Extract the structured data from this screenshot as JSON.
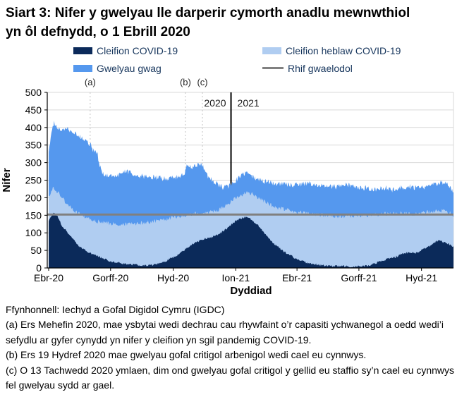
{
  "page": {
    "title": "Siart 3: Nifer y gwelyau lle darperir cymorth anadlu mewnwthiol yn ôl defnydd, o 1 Ebrill 2020",
    "footnotes": [
      "Ffynhonnell: Iechyd a Gofal Digidol Cymru (IGDC)",
      "(a) Ers Mehefin 2020, mae ysbytai wedi dechrau cau rhywfaint o’r capasiti ychwanegol a oedd wedi’i sefydlu ar gyfer cynydd yn nifer y cleifion yn sgil pandemig COVID-19.",
      "(b) Ers 19 Hydref 2020 mae gwelyau gofal critigol arbenigol wedi cael eu cynnwys.",
      "(c) O 13 Tachwedd 2020 ymlaen, dim ond gwelyau gofal critigol y gellid eu staffio sy’n cael eu cynnwys fel gwelyau sydd ar gael."
    ]
  },
  "legend": {
    "items": [
      {
        "label": "Cleifion COVID-19",
        "swatch": "rect",
        "color": "#0b2a5a"
      },
      {
        "label": "Cleifion heblaw COVID-19",
        "swatch": "rect",
        "color": "#b0cdf1"
      },
      {
        "label": "Gwelyau gwag",
        "swatch": "rect",
        "color": "#5598ee"
      },
      {
        "label": "Rhif gwaelodol",
        "swatch": "line",
        "color": "#808080"
      }
    ]
  },
  "chart_data": {
    "type": "area",
    "stacked": true,
    "x_unit": "days since 2020-04-01",
    "x_range_days": [
      0,
      595
    ],
    "ylim": [
      0,
      500
    ],
    "ytick_step": 50,
    "xlabel": "Dyddiad",
    "ylabel": "Nifer",
    "grid": true,
    "x_ticks": [
      {
        "day": 0,
        "label": "Ebr-20"
      },
      {
        "day": 91,
        "label": "Gorff-20"
      },
      {
        "day": 183,
        "label": "Hyd-20"
      },
      {
        "day": 275,
        "label": "Ion-21"
      },
      {
        "day": 365,
        "label": "Ebr-21"
      },
      {
        "day": 456,
        "label": "Gorff-21"
      },
      {
        "day": 548,
        "label": "Hyd-21"
      }
    ],
    "baseline": {
      "label": "Rhif gwaelodol",
      "value": 152,
      "color": "#808080"
    },
    "year_divider": {
      "day": 268,
      "left_label": "2020",
      "right_label": "2021"
    },
    "annotations": [
      {
        "label": "(a)",
        "day": 61
      },
      {
        "label": "(b)",
        "day": 201
      },
      {
        "label": "(c)",
        "day": 226
      }
    ],
    "jitter": [
      3,
      6,
      8
    ],
    "series": [
      {
        "id": "covid_patients",
        "legend_label": "Cleifion COVID-19",
        "color": "#0b2a5a",
        "meaning": "cumulative top: patients with COVID-19",
        "points": [
          [
            0,
            132
          ],
          [
            7,
            157
          ],
          [
            12,
            150
          ],
          [
            20,
            118
          ],
          [
            30,
            96
          ],
          [
            45,
            62
          ],
          [
            60,
            43
          ],
          [
            75,
            30
          ],
          [
            90,
            20
          ],
          [
            105,
            14
          ],
          [
            120,
            10
          ],
          [
            140,
            7
          ],
          [
            155,
            9
          ],
          [
            170,
            18
          ],
          [
            185,
            32
          ],
          [
            200,
            52
          ],
          [
            215,
            72
          ],
          [
            228,
            83
          ],
          [
            240,
            88
          ],
          [
            252,
            98
          ],
          [
            262,
            112
          ],
          [
            270,
            126
          ],
          [
            280,
            140
          ],
          [
            290,
            145
          ],
          [
            298,
            138
          ],
          [
            308,
            122
          ],
          [
            320,
            92
          ],
          [
            332,
            68
          ],
          [
            345,
            48
          ],
          [
            360,
            30
          ],
          [
            375,
            18
          ],
          [
            390,
            11
          ],
          [
            405,
            7
          ],
          [
            425,
            5
          ],
          [
            450,
            4
          ],
          [
            468,
            7
          ],
          [
            482,
            14
          ],
          [
            495,
            24
          ],
          [
            508,
            30
          ],
          [
            520,
            40
          ],
          [
            530,
            45
          ],
          [
            540,
            42
          ],
          [
            552,
            55
          ],
          [
            562,
            63
          ],
          [
            572,
            78
          ],
          [
            580,
            74
          ],
          [
            588,
            68
          ],
          [
            595,
            60
          ]
        ]
      },
      {
        "id": "all_patients",
        "legend_label": "Cleifion heblaw COVID-19",
        "color": "#b0cdf1",
        "meaning": "cumulative top: COVID + non-COVID patients",
        "points": [
          [
            0,
            205
          ],
          [
            7,
            227
          ],
          [
            14,
            216
          ],
          [
            25,
            186
          ],
          [
            40,
            160
          ],
          [
            55,
            142
          ],
          [
            70,
            133
          ],
          [
            90,
            127
          ],
          [
            110,
            124
          ],
          [
            130,
            127
          ],
          [
            150,
            131
          ],
          [
            170,
            138
          ],
          [
            190,
            146
          ],
          [
            210,
            153
          ],
          [
            230,
            157
          ],
          [
            248,
            162
          ],
          [
            260,
            176
          ],
          [
            270,
            192
          ],
          [
            280,
            206
          ],
          [
            290,
            214
          ],
          [
            298,
            212
          ],
          [
            308,
            200
          ],
          [
            320,
            186
          ],
          [
            335,
            172
          ],
          [
            350,
            167
          ],
          [
            365,
            160
          ],
          [
            385,
            154
          ],
          [
            405,
            150
          ],
          [
            430,
            147
          ],
          [
            455,
            149
          ],
          [
            475,
            151
          ],
          [
            495,
            154
          ],
          [
            515,
            157
          ],
          [
            535,
            153
          ],
          [
            555,
            158
          ],
          [
            572,
            164
          ],
          [
            585,
            162
          ],
          [
            595,
            150
          ]
        ]
      },
      {
        "id": "all_beds",
        "legend_label": "Gwelyau gwag",
        "color": "#5598ee",
        "meaning": "cumulative top: all beds including empty",
        "points": [
          [
            0,
            330
          ],
          [
            4,
            390
          ],
          [
            8,
            418
          ],
          [
            12,
            400
          ],
          [
            18,
            393
          ],
          [
            25,
            396
          ],
          [
            35,
            390
          ],
          [
            42,
            380
          ],
          [
            50,
            368
          ],
          [
            57,
            358
          ],
          [
            61,
            352
          ],
          [
            65,
            338
          ],
          [
            68,
            332
          ],
          [
            71,
            330
          ],
          [
            74,
            300
          ],
          [
            78,
            272
          ],
          [
            85,
            265
          ],
          [
            95,
            263
          ],
          [
            105,
            266
          ],
          [
            113,
            277
          ],
          [
            120,
            270
          ],
          [
            130,
            263
          ],
          [
            145,
            260
          ],
          [
            160,
            257
          ],
          [
            175,
            254
          ],
          [
            188,
            258
          ],
          [
            196,
            264
          ],
          [
            200,
            268
          ],
          [
            202,
            290
          ],
          [
            206,
            293
          ],
          [
            212,
            288
          ],
          [
            218,
            292
          ],
          [
            226,
            293
          ],
          [
            230,
            272
          ],
          [
            235,
            258
          ],
          [
            242,
            247
          ],
          [
            250,
            237
          ],
          [
            257,
            229
          ],
          [
            263,
            231
          ],
          [
            270,
            243
          ],
          [
            277,
            252
          ],
          [
            283,
            263
          ],
          [
            290,
            270
          ],
          [
            297,
            263
          ],
          [
            305,
            252
          ],
          [
            315,
            247
          ],
          [
            330,
            242
          ],
          [
            345,
            239
          ],
          [
            360,
            237
          ],
          [
            380,
            241
          ],
          [
            400,
            234
          ],
          [
            420,
            231
          ],
          [
            440,
            237
          ],
          [
            460,
            229
          ],
          [
            480,
            224
          ],
          [
            495,
            228
          ],
          [
            505,
            221
          ],
          [
            515,
            229
          ],
          [
            530,
            232
          ],
          [
            545,
            227
          ],
          [
            558,
            233
          ],
          [
            572,
            240
          ],
          [
            580,
            242
          ],
          [
            588,
            234
          ],
          [
            595,
            220
          ]
        ]
      }
    ]
  }
}
